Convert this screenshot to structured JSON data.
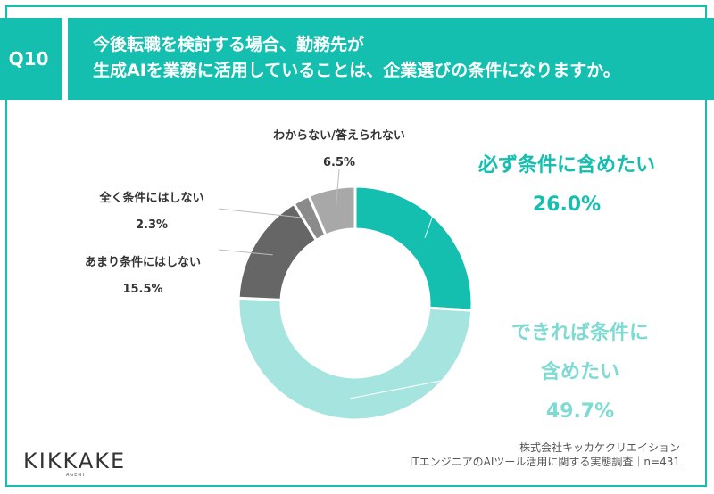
{
  "header": {
    "q_number": "Q10",
    "title_line1": "今後転職を検討する場合、勤務先が",
    "title_line2": "生成AIを業務に活用していることは、企業選びの条件になりますか。"
  },
  "chart_data": {
    "type": "pie",
    "donut": true,
    "categories": [
      "必ず条件に含めたい",
      "できれば条件に含めたい",
      "あまり条件にはしない",
      "全く条件にはしない",
      "わからない/答えられない"
    ],
    "values": [
      26.0,
      49.7,
      15.5,
      2.3,
      6.5
    ],
    "value_labels": [
      "26.0%",
      "49.7%",
      "15.5%",
      "2.3%",
      "6.5%"
    ],
    "colors": [
      "#14bfb0",
      "#a6e4df",
      "#666666",
      "#8a8a8a",
      "#a8a8a8"
    ]
  },
  "labels": {
    "must": {
      "name": "必ず条件に含めたい",
      "value": "26.0%"
    },
    "if_possible": {
      "name1": "できれば条件に",
      "name2": "含めたい",
      "value": "49.7%"
    },
    "rarely": {
      "name": "あまり条件にはしない",
      "value": "15.5%"
    },
    "never": {
      "name": "全く条件にはしない",
      "value": "2.3%"
    },
    "unknown": {
      "name": "わからない/答えられない",
      "value": "6.5%"
    }
  },
  "footer": {
    "logo": "KIKKAKE",
    "logo_sub": "AGENT",
    "source_line1": "株式会社キッカケクリエイション",
    "source_line2": "ITエンジニアのAIツール活用に関する実態調査｜n=431"
  }
}
